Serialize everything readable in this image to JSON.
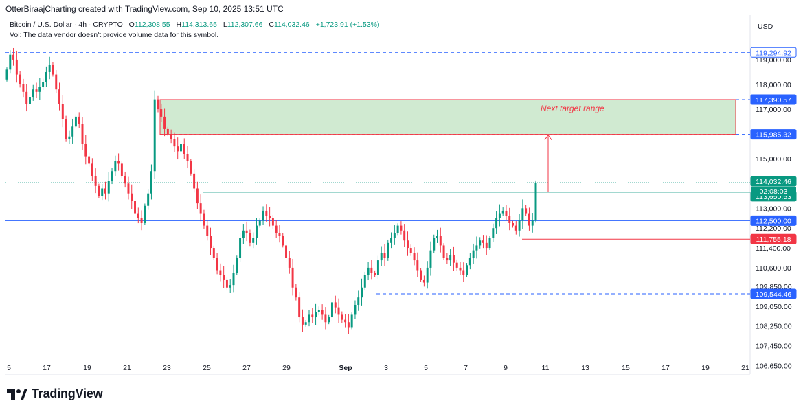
{
  "header": {
    "text": "OtterBiraajCharting created with TradingView.com, Sep 10, 2025 13:51 UTC"
  },
  "legend": {
    "symbol": "Bitcoin / U.S. Dollar · 4h · CRYPTO",
    "o_label": "O",
    "o_value": "112,308.55",
    "h_label": "H",
    "h_value": "114,313.65",
    "l_label": "L",
    "l_value": "112,307.66",
    "c_label": "C",
    "c_value": "114,032.46",
    "change": "+1,723.91 (+1.53%)",
    "vol_note": "Vol: The data vendor doesn't provide volume data for this symbol."
  },
  "currency": "USD",
  "annotation": {
    "text": "Next target range"
  },
  "footer": {
    "brand": "TradingView"
  },
  "colors": {
    "up": "#089981",
    "down": "#f23645",
    "blue": "#2962ff",
    "zone": "#c8e6c9"
  },
  "chart_data": {
    "type": "candlestick",
    "interval": "4h",
    "ylim": [
      106300,
      120800
    ],
    "y_ticks": [
      "106,650.00",
      "107,450.00",
      "108,250.00",
      "109,050.00",
      "109,850.00",
      "110,600.00",
      "111,400.00",
      "112,200.00",
      "113,000.00",
      "115,000.00",
      "117,000.00",
      "118,000.00",
      "119,000.00"
    ],
    "x_ticks": [
      "5",
      "17",
      "19",
      "21",
      "23",
      "25",
      "27",
      "29",
      "Sep",
      "3",
      "5",
      "7",
      "9",
      "11",
      "13",
      "15",
      "17",
      "19",
      "21"
    ],
    "price_labels": [
      {
        "value": 119294.92,
        "label": "119,294.92",
        "style": "outline",
        "color": "#2962ff"
      },
      {
        "value": 117390.57,
        "label": "117,390.57",
        "style": "filled",
        "color": "#2962ff"
      },
      {
        "value": 115985.32,
        "label": "115,985.32",
        "style": "filled",
        "color": "#2962ff"
      },
      {
        "value": 114032.46,
        "label": "114,032.46",
        "style": "filled",
        "color": "#089981"
      },
      {
        "value": 113650.53,
        "label": "113,650.53",
        "style": "filled",
        "color": "#089981"
      },
      {
        "value": 112500.0,
        "label": "112,500.00",
        "style": "filled",
        "color": "#2962ff"
      },
      {
        "value": 111755.18,
        "label": "111,755.18",
        "style": "filled",
        "color": "#f23645"
      },
      {
        "value": 109544.46,
        "label": "109,544.46",
        "style": "filled",
        "color": "#2962ff"
      }
    ],
    "countdown": "02:08:03",
    "levels": [
      {
        "value": 119294.92,
        "style": "dashed",
        "color": "#2962ff"
      },
      {
        "value": 115985.32,
        "style": "dashed",
        "color": "#2962ff"
      },
      {
        "value": 117390.57,
        "style": "dashed",
        "color": "#2962ff"
      },
      {
        "value": 112500.0,
        "style": "solid",
        "color": "#2962ff"
      },
      {
        "value": 109544.46,
        "style": "dashed",
        "color": "#2962ff"
      },
      {
        "value": 114032.46,
        "style": "dotted",
        "color": "#089981"
      },
      {
        "value": 113650.53,
        "style": "solid",
        "color": "#089981"
      },
      {
        "value": 111755.18,
        "style": "solid",
        "color": "#f23645"
      }
    ],
    "target_zone": {
      "low": 115985.32,
      "high": 117390.57,
      "label": "Next target range"
    },
    "closes": [
      118600,
      119200,
      119000,
      118400,
      118000,
      117700,
      117200,
      117500,
      117800,
      117700,
      117900,
      118100,
      118500,
      118800,
      118400,
      117800,
      117200,
      116600,
      115800,
      115900,
      116300,
      116700,
      116400,
      115600,
      115100,
      114800,
      114300,
      113900,
      113500,
      113800,
      113600,
      114100,
      114500,
      114900,
      114800,
      114300,
      114000,
      113600,
      113300,
      112800,
      112600,
      112400,
      113100,
      113600,
      114500,
      117400,
      117000,
      116700,
      116200,
      116000,
      115800,
      115500,
      115300,
      115600,
      115200,
      114900,
      114400,
      113800,
      113200,
      112800,
      112300,
      111900,
      111400,
      111000,
      110500,
      110300,
      110100,
      109800,
      109900,
      110400,
      111000,
      111800,
      112100,
      112000,
      111600,
      111800,
      112300,
      112500,
      112900,
      112700,
      112600,
      112300,
      112000,
      111900,
      111500,
      111000,
      110600,
      109800,
      109400,
      108600,
      108300,
      108400,
      108700,
      108600,
      108800,
      108900,
      108700,
      108400,
      108600,
      109200,
      109000,
      108700,
      108500,
      108400,
      108200,
      108700,
      109100,
      109400,
      109800,
      110300,
      110600,
      110400,
      110300,
      110900,
      111200,
      111000,
      111600,
      111800,
      112000,
      112300,
      112100,
      111700,
      111400,
      111200,
      110900,
      110500,
      110100,
      110000,
      110600,
      111300,
      111800,
      111900,
      111500,
      111000,
      110900,
      111100,
      110800,
      110600,
      110500,
      110300,
      110700,
      111000,
      111300,
      111500,
      111700,
      111600,
      111400,
      111800,
      112200,
      112600,
      112800,
      112900,
      112700,
      112400,
      112300,
      112100,
      112500,
      113000,
      112800,
      112300,
      112500,
      114032.46
    ]
  }
}
